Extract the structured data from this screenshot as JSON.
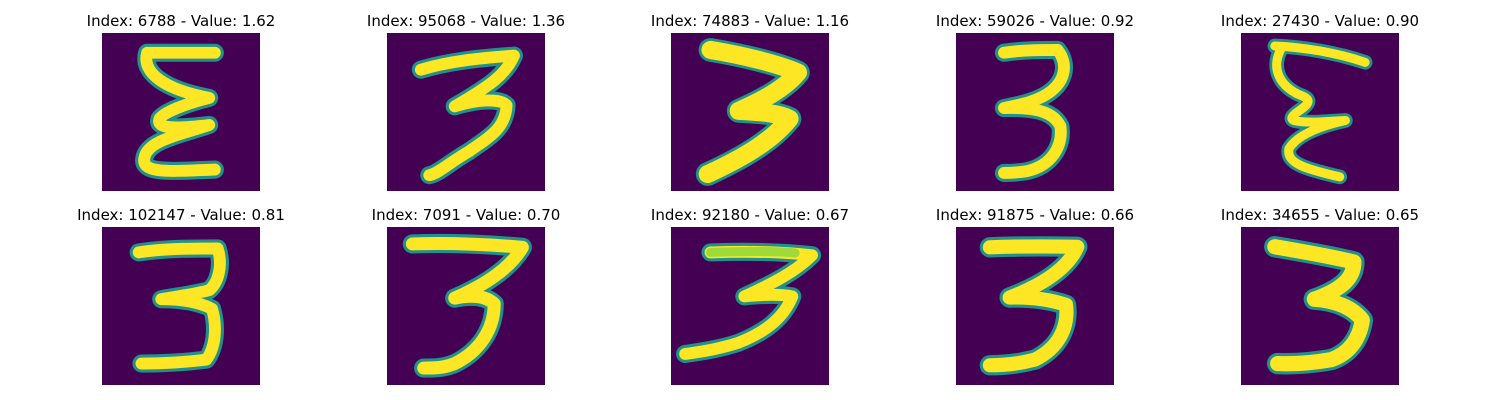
{
  "colors": {
    "background": "#440154",
    "low": "#3b528b",
    "mid": "#21918c",
    "high_mid": "#5ec962",
    "high": "#fde725"
  },
  "samples": [
    {
      "title": "Index: 6788 - Value: 1.62",
      "digit_shape": "reversed-3-like"
    },
    {
      "title": "Index: 95068 - Value: 1.36",
      "digit_shape": "3"
    },
    {
      "title": "Index: 74883 - Value: 1.16",
      "digit_shape": "bold-3"
    },
    {
      "title": "Index: 59026 - Value: 0.92",
      "digit_shape": "3"
    },
    {
      "title": "Index: 27430 - Value: 0.90",
      "digit_shape": "reversed-3-like"
    },
    {
      "title": "Index: 102147 - Value: 0.81",
      "digit_shape": "3"
    },
    {
      "title": "Index: 7091 - Value: 0.70",
      "digit_shape": "3"
    },
    {
      "title": "Index: 92180 - Value: 0.67",
      "digit_shape": "3"
    },
    {
      "title": "Index: 91875 - Value: 0.66",
      "digit_shape": "3"
    },
    {
      "title": "Index: 34655 - Value: 0.65",
      "digit_shape": "3"
    }
  ]
}
